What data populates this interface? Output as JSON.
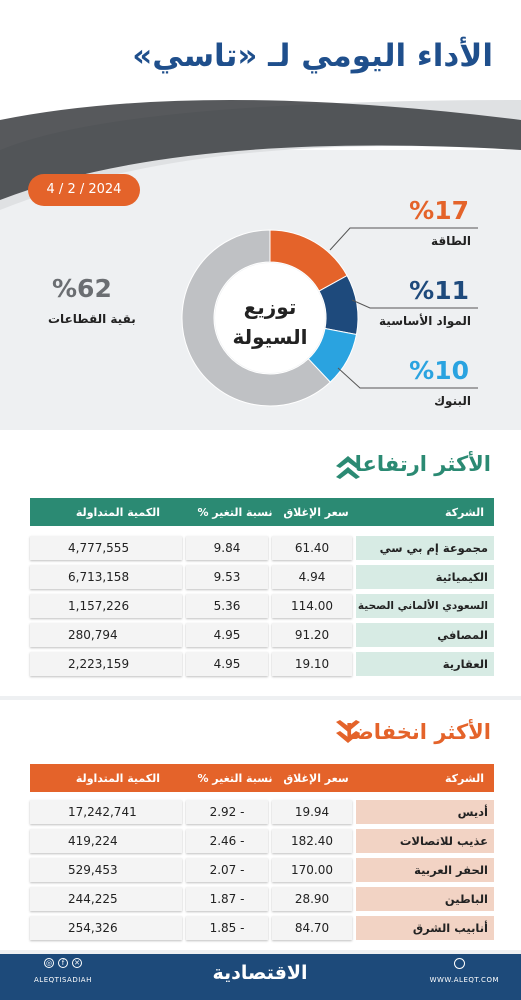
{
  "header": {
    "title": "الأداء اليومي لـ «تاسي»",
    "date": "4 / 2 / 2024"
  },
  "colors": {
    "brand_blue": "#1f4f8c",
    "orange": "#e4632a",
    "navy": "#1d4a7a",
    "light_blue": "#2aa3e0",
    "grey": "#bfc1c4",
    "green": "#2b8a73"
  },
  "distribution": {
    "center_line1": "توزيع",
    "center_line2": "السيولة",
    "segments": [
      {
        "label": "الطاقة",
        "percent_text": "%17",
        "value": 17,
        "color": "#e4632a"
      },
      {
        "label": "المواد الأساسية",
        "percent_text": "%11",
        "value": 11,
        "color": "#1e4a7c"
      },
      {
        "label": "البنوك",
        "percent_text": "%10",
        "value": 10,
        "color": "#2aa3e0"
      },
      {
        "label": "بقية القطاعات",
        "percent_text": "%62",
        "value": 62,
        "color": "#bfc1c4"
      }
    ]
  },
  "gainers": {
    "title": "الأكثر ارتفاعا",
    "icon": "double-chevron-up-icon",
    "headers": {
      "name": "الشركة",
      "close": "سعر الإغلاق",
      "change": "نسبة التغير %",
      "qty": "الكمية المتداولة"
    },
    "rows": [
      {
        "name": "مجموعة إم بي سي",
        "close": "61.40",
        "change": "9.84",
        "qty": "4,777,555"
      },
      {
        "name": "الكيميائية",
        "close": "4.94",
        "change": "9.53",
        "qty": "6,713,158"
      },
      {
        "name": "السعودي الألماني الصحية",
        "close": "114.00",
        "change": "5.36",
        "qty": "1,157,226"
      },
      {
        "name": "المصافي",
        "close": "91.20",
        "change": "4.95",
        "qty": "280,794"
      },
      {
        "name": "العقارية",
        "close": "19.10",
        "change": "4.95",
        "qty": "2,223,159"
      }
    ]
  },
  "losers": {
    "title": "الأكثر انخفاضا",
    "icon": "double-chevron-down-icon",
    "headers": {
      "name": "الشركة",
      "close": "سعر الإغلاق",
      "change": "نسبة التغير %",
      "qty": "الكمية المتداولة"
    },
    "rows": [
      {
        "name": "أديس",
        "close": "19.94",
        "change": "2.92 -",
        "qty": "17,242,741"
      },
      {
        "name": "عذيب للاتصالات",
        "close": "182.40",
        "change": "2.46 -",
        "qty": "419,224"
      },
      {
        "name": "الحفر العربية",
        "close": "170.00",
        "change": "2.07 -",
        "qty": "529,453"
      },
      {
        "name": "الباطين",
        "close": "28.90",
        "change": "1.87 -",
        "qty": "244,225"
      },
      {
        "name": "أنابيب الشرق",
        "close": "84.70",
        "change": "1.85 -",
        "qty": "254,326"
      }
    ]
  },
  "footer": {
    "brand": "الاقتصادية",
    "handle": "ALEQTISADIAH",
    "site": "WWW.ALEQT.COM",
    "social_icons": [
      "instagram-icon",
      "facebook-icon",
      "x-icon"
    ]
  }
}
